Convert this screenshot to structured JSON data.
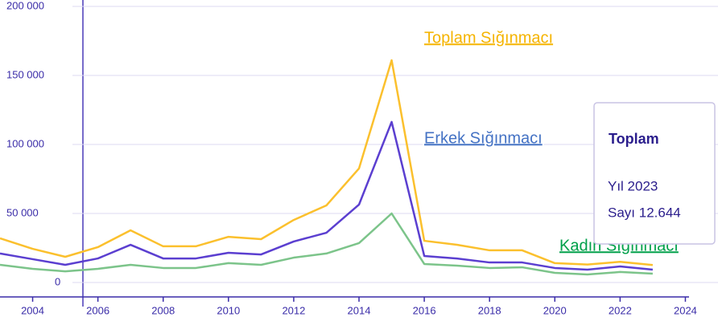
{
  "chart_data": {
    "type": "line",
    "x": [
      2003,
      2004,
      2005,
      2006,
      2007,
      2008,
      2009,
      2010,
      2011,
      2012,
      2013,
      2014,
      2015,
      2016,
      2017,
      2018,
      2019,
      2020,
      2021,
      2022,
      2023
    ],
    "series": [
      {
        "name": "Toplam Sığınmacı",
        "color": "#fbc02d",
        "label_color": "#f5b400",
        "values": [
          32000,
          24400,
          18600,
          25600,
          37800,
          26200,
          26200,
          33100,
          31400,
          45300,
          55800,
          82600,
          161000,
          30200,
          27300,
          23300,
          23300,
          14000,
          13000,
          15000,
          12644
        ]
      },
      {
        "name": "Erkek Sığınmacı",
        "color": "#5b3fd0",
        "label_color": "#4472c4",
        "values": [
          21000,
          16900,
          12800,
          17400,
          27300,
          17400,
          17400,
          21500,
          20300,
          29700,
          36000,
          56400,
          116300,
          19200,
          17400,
          14500,
          14500,
          10500,
          9300,
          11600,
          9300
        ]
      },
      {
        "name": "Kadın Sığınmacı",
        "color": "#7cc48a",
        "label_color": "#00a04a",
        "values": [
          12800,
          9900,
          8100,
          9900,
          12800,
          10500,
          10500,
          14000,
          12800,
          18000,
          21000,
          28500,
          50000,
          13400,
          12200,
          10500,
          11000,
          7000,
          5800,
          7600,
          6400
        ]
      }
    ],
    "xlim": [
      2003,
      2025
    ],
    "xticks": [
      2004,
      2006,
      2008,
      2010,
      2012,
      2014,
      2016,
      2018,
      2020,
      2022,
      2024
    ],
    "ylim": [
      0,
      200000
    ],
    "yticks": [
      0,
      {
        "value": 50000,
        "label": "50 000"
      },
      {
        "value": 100000,
        "label": "100 000"
      },
      {
        "value": 150000,
        "label": "150 000"
      },
      {
        "value": 200000,
        "label": "200 000"
      }
    ],
    "grid": true,
    "tooltip": {
      "title": "Toplam",
      "year_label": "Yıl 2023",
      "value_label": "Sayı 12.644"
    }
  }
}
